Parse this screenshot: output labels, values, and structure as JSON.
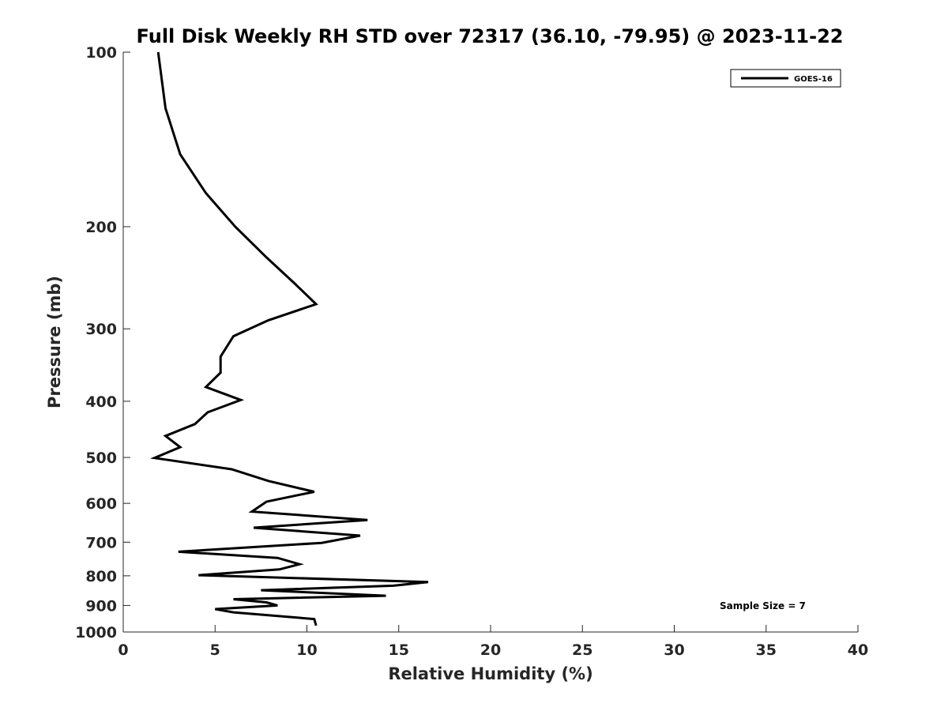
{
  "chart_data": {
    "type": "line",
    "title": "Full Disk Weekly RH STD over 72317 (36.10, -79.95) @ 2023-11-22",
    "xlabel": "Relative Humidity (%)",
    "ylabel": "Pressure (mb)",
    "xlim": [
      0,
      40
    ],
    "ylim": [
      100,
      1000
    ],
    "y_scale": "log",
    "y_reversed": true,
    "x_ticks": [
      0,
      5,
      10,
      15,
      20,
      25,
      30,
      35,
      40
    ],
    "y_ticks": [
      100,
      200,
      300,
      400,
      500,
      600,
      700,
      800,
      900,
      1000
    ],
    "grid": false,
    "legend_position": "top-right",
    "series": [
      {
        "name": "GOES-16",
        "color": "#000000",
        "points": [
          [
            1.9,
            100
          ],
          [
            2.3,
            125
          ],
          [
            3.1,
            150
          ],
          [
            4.5,
            175
          ],
          [
            6.1,
            200
          ],
          [
            7.8,
            226
          ],
          [
            9.3,
            250
          ],
          [
            10.5,
            272
          ],
          [
            7.9,
            290
          ],
          [
            6.0,
            309
          ],
          [
            5.3,
            335
          ],
          [
            5.3,
            357
          ],
          [
            4.5,
            378
          ],
          [
            6.4,
            398
          ],
          [
            4.6,
            418
          ],
          [
            3.9,
            438
          ],
          [
            2.3,
            459
          ],
          [
            3.1,
            480
          ],
          [
            1.7,
            501
          ],
          [
            5.9,
            524
          ],
          [
            7.9,
            549
          ],
          [
            10.4,
            573
          ],
          [
            7.8,
            596
          ],
          [
            7.0,
            620
          ],
          [
            13.3,
            641
          ],
          [
            7.1,
            661
          ],
          [
            12.9,
            682
          ],
          [
            10.8,
            702
          ],
          [
            3.0,
            727
          ],
          [
            8.4,
            745
          ],
          [
            9.6,
            764
          ],
          [
            8.5,
            780
          ],
          [
            4.1,
            798
          ],
          [
            16.6,
            820
          ],
          [
            14.7,
            832
          ],
          [
            7.5,
            847
          ],
          [
            14.3,
            866
          ],
          [
            6.0,
            878
          ],
          [
            7.8,
            889
          ],
          [
            8.4,
            900
          ],
          [
            5.0,
            913
          ],
          [
            6.0,
            925
          ],
          [
            10.4,
            950
          ],
          [
            10.5,
            975
          ]
        ]
      }
    ],
    "annotations": [
      "Sample Size = 7"
    ]
  }
}
